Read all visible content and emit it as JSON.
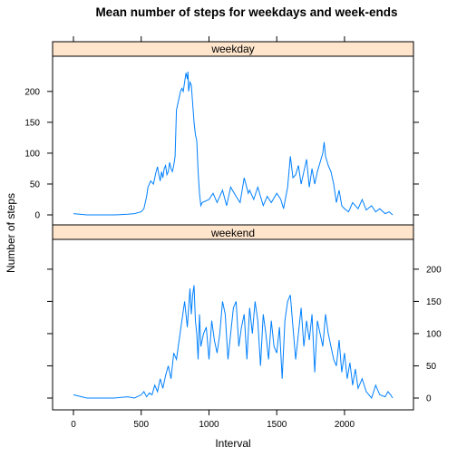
{
  "chart_data": {
    "type": "line",
    "title": "Mean number of steps for weekdays and week-ends",
    "xlabel": "Interval",
    "ylabel": "Number of steps",
    "xlim": [
      0,
      2355
    ],
    "ylim": [
      0,
      235
    ],
    "x_ticks": [
      0,
      500,
      1000,
      1500,
      2000
    ],
    "y_ticks": [
      0,
      50,
      100,
      150,
      200
    ],
    "line_color": "#0080ff",
    "strip_color": "#ffe5cc",
    "grid": false,
    "panels": [
      {
        "name": "weekday",
        "x": [
          0,
          100,
          200,
          300,
          400,
          450,
          500,
          520,
          540,
          550,
          570,
          590,
          600,
          610,
          620,
          630,
          640,
          650,
          660,
          670,
          680,
          690,
          700,
          710,
          720,
          730,
          740,
          750,
          760,
          770,
          780,
          790,
          800,
          810,
          820,
          830,
          840,
          845,
          850,
          860,
          870,
          880,
          890,
          900,
          910,
          920,
          930,
          940,
          950,
          1000,
          1030,
          1060,
          1100,
          1130,
          1160,
          1200,
          1230,
          1260,
          1290,
          1300,
          1330,
          1360,
          1400,
          1430,
          1460,
          1500,
          1530,
          1550,
          1580,
          1600,
          1620,
          1640,
          1660,
          1680,
          1700,
          1720,
          1740,
          1760,
          1780,
          1800,
          1820,
          1840,
          1850,
          1860,
          1880,
          1900,
          1920,
          1940,
          1960,
          1980,
          2000,
          2030,
          2060,
          2100,
          2130,
          2160,
          2200,
          2230,
          2260,
          2300,
          2330,
          2355
        ],
        "values": [
          2,
          0,
          0,
          0,
          1,
          2,
          5,
          10,
          30,
          45,
          55,
          50,
          60,
          70,
          78,
          65,
          55,
          70,
          60,
          75,
          80,
          65,
          70,
          85,
          75,
          70,
          80,
          95,
          170,
          180,
          190,
          200,
          205,
          200,
          215,
          230,
          220,
          232,
          200,
          215,
          210,
          180,
          150,
          130,
          120,
          70,
          35,
          15,
          20,
          25,
          35,
          20,
          40,
          15,
          45,
          30,
          20,
          60,
          35,
          40,
          25,
          45,
          15,
          30,
          20,
          35,
          25,
          10,
          45,
          95,
          60,
          65,
          80,
          50,
          70,
          90,
          45,
          75,
          50,
          70,
          85,
          100,
          118,
          95,
          80,
          70,
          50,
          20,
          40,
          15,
          10,
          5,
          20,
          10,
          25,
          8,
          15,
          5,
          10,
          2,
          5,
          0
        ]
      },
      {
        "name": "weekend",
        "x": [
          0,
          100,
          200,
          300,
          400,
          450,
          500,
          520,
          540,
          560,
          580,
          600,
          620,
          640,
          660,
          680,
          700,
          720,
          740,
          760,
          780,
          800,
          820,
          840,
          860,
          870,
          880,
          890,
          900,
          910,
          920,
          930,
          940,
          960,
          980,
          1000,
          1020,
          1040,
          1060,
          1080,
          1100,
          1120,
          1140,
          1160,
          1180,
          1200,
          1220,
          1240,
          1260,
          1280,
          1300,
          1320,
          1340,
          1360,
          1380,
          1400,
          1420,
          1440,
          1460,
          1480,
          1500,
          1520,
          1540,
          1560,
          1580,
          1600,
          1620,
          1640,
          1660,
          1680,
          1700,
          1720,
          1740,
          1760,
          1780,
          1800,
          1820,
          1840,
          1860,
          1880,
          1900,
          1920,
          1940,
          1960,
          1980,
          2000,
          2020,
          2040,
          2060,
          2080,
          2100,
          2130,
          2160,
          2200,
          2230,
          2260,
          2300,
          2320,
          2340,
          2355
        ],
        "values": [
          5,
          0,
          0,
          0,
          2,
          0,
          5,
          10,
          2,
          8,
          5,
          20,
          10,
          30,
          15,
          35,
          50,
          30,
          70,
          60,
          90,
          120,
          150,
          110,
          170,
          130,
          160,
          175,
          120,
          100,
          60,
          130,
          80,
          100,
          110,
          60,
          120,
          90,
          70,
          100,
          150,
          130,
          60,
          100,
          140,
          150,
          80,
          110,
          130,
          60,
          140,
          100,
          150,
          120,
          50,
          130,
          100,
          60,
          120,
          80,
          70,
          110,
          30,
          120,
          150,
          160,
          110,
          60,
          100,
          140,
          80,
          120,
          90,
          130,
          40,
          120,
          100,
          80,
          130,
          100,
          80,
          60,
          50,
          90,
          40,
          70,
          30,
          55,
          20,
          45,
          15,
          30,
          10,
          0,
          20,
          5,
          2,
          10,
          5,
          0
        ]
      }
    ]
  }
}
